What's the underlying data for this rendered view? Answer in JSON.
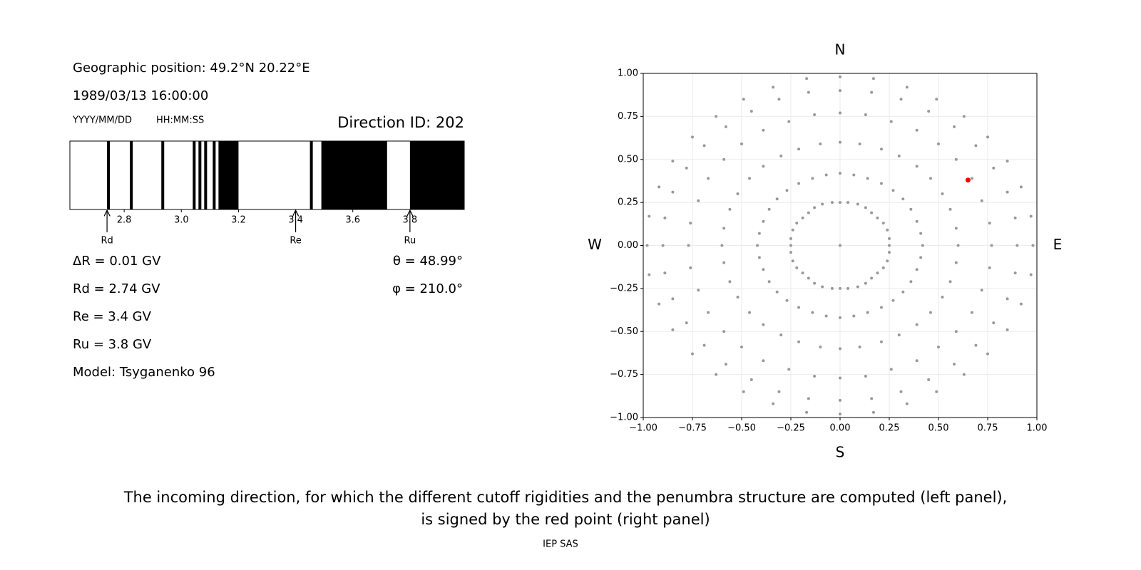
{
  "info": {
    "position": "Geographic position: 49.2°N 20.22°E",
    "datetime": "1989/03/13 16:00:00",
    "date_format": "YYYY/MM/DD",
    "time_format": "HH:MM:SS",
    "direction_id": "Direction ID: 202",
    "delta_r": "ΔR = 0.01 GV",
    "rd": "Rd = 2.74 GV",
    "re": "Re = 3.4 GV",
    "ru": "Ru = 3.8 GV",
    "model": "Model: Tsyganenko 96",
    "theta": "θ = 48.99°",
    "phi": "φ = 210.0°"
  },
  "caption": [
    "The incoming direction, for which the different cutoff rigidities and the penumbra structure are computed (left panel),",
    "is signed by the red point (right panel)"
  ],
  "footer": "IEP SAS",
  "chart_data": [
    {
      "type": "penumbra",
      "color": "#000000",
      "xlim": [
        2.61,
        3.99
      ],
      "xticks": [
        2.8,
        {
          "value": 3,
          "label": "3.0"
        },
        3.2,
        3.4,
        3.6,
        3.8
      ],
      "bands": [
        [
          2.74,
          2.75
        ],
        [
          2.82,
          2.83
        ],
        [
          2.93,
          2.94
        ],
        [
          3.04,
          3.05
        ],
        [
          3.06,
          3.07
        ],
        [
          3.08,
          3.09
        ],
        [
          3.11,
          3.12
        ],
        [
          3.13,
          3.2
        ],
        [
          3.45,
          3.46
        ],
        [
          3.49,
          3.72
        ],
        [
          3.8,
          3.99
        ]
      ],
      "annotations": [
        {
          "label": "Rd",
          "value": 2.74
        },
        {
          "label": "Re",
          "value": 3.4
        },
        {
          "label": "Ru",
          "value": 3.8
        }
      ]
    },
    {
      "type": "scatter",
      "color": "#999999",
      "grid": true,
      "xlim": [
        -1,
        1
      ],
      "ylim": [
        -1,
        1
      ],
      "xticks": [
        {
          "value": -1,
          "label": "−1.00"
        },
        {
          "value": -0.75,
          "label": "−0.75"
        },
        {
          "value": -0.5,
          "label": "−0.50"
        },
        {
          "value": -0.25,
          "label": "−0.25"
        },
        {
          "value": 0,
          "label": "0.00"
        },
        {
          "value": 0.25,
          "label": "0.25"
        },
        {
          "value": 0.5,
          "label": "0.50"
        },
        {
          "value": 0.75,
          "label": "0.75"
        },
        {
          "value": 1,
          "label": "1.00"
        }
      ],
      "yticks": [
        {
          "value": -1,
          "label": "−1.00"
        },
        {
          "value": -0.75,
          "label": "−0.75"
        },
        {
          "value": -0.5,
          "label": "−0.50"
        },
        {
          "value": -0.25,
          "label": "−0.25"
        },
        {
          "value": 0,
          "label": "0.00"
        },
        {
          "value": 0.25,
          "label": "0.25"
        },
        {
          "value": 0.5,
          "label": "0.50"
        },
        {
          "value": 0.75,
          "label": "0.75"
        },
        {
          "value": 1,
          "label": "1.00"
        }
      ],
      "directions": {
        "top": "N",
        "bottom": "S",
        "left": "W",
        "right": "E"
      },
      "x": [
        0,
        0,
        0.04,
        0.09,
        0.13,
        0.16,
        0.19,
        0.22,
        0.24,
        0.25,
        0.25,
        0.25,
        0.24,
        0.22,
        0.19,
        0.16,
        0.13,
        0.09,
        0.04,
        0,
        -0.04,
        -0.09,
        -0.13,
        -0.16,
        -0.19,
        -0.22,
        -0.24,
        -0.25,
        -0.25,
        -0.25,
        -0.24,
        -0.22,
        -0.19,
        -0.16,
        -0.13,
        -0.09,
        -0.04,
        0,
        0.07,
        0.14,
        0.21,
        0.27,
        0.32,
        0.36,
        0.39,
        0.41,
        0.42,
        0.41,
        0.39,
        0.36,
        0.32,
        0.27,
        0.21,
        0.14,
        0.07,
        0,
        -0.07,
        -0.14,
        -0.21,
        -0.27,
        -0.32,
        -0.36,
        -0.39,
        -0.41,
        -0.42,
        -0.41,
        -0.39,
        -0.36,
        -0.32,
        -0.27,
        -0.21,
        -0.14,
        -0.07,
        0,
        0.1,
        0.21,
        0.3,
        0.39,
        0.46,
        0.52,
        0.56,
        0.59,
        0.6,
        0.59,
        0.56,
        0.52,
        0.46,
        0.39,
        0.3,
        0.21,
        0.1,
        0,
        -0.1,
        -0.21,
        -0.3,
        -0.39,
        -0.46,
        -0.52,
        -0.56,
        -0.59,
        -0.6,
        -0.59,
        -0.56,
        -0.52,
        -0.46,
        -0.39,
        -0.3,
        -0.21,
        -0.1,
        0,
        0.13,
        0.26,
        0.39,
        0.5,
        0.59,
        0.67,
        0.72,
        0.76,
        0.77,
        0.76,
        0.72,
        0.67,
        0.59,
        0.5,
        0.39,
        0.26,
        0.13,
        0,
        -0.13,
        -0.26,
        -0.39,
        -0.5,
        -0.59,
        -0.67,
        -0.72,
        -0.76,
        -0.77,
        -0.76,
        -0.72,
        -0.67,
        -0.59,
        -0.5,
        -0.39,
        -0.26,
        -0.13,
        0,
        0.16,
        0.31,
        0.45,
        0.58,
        0.69,
        0.78,
        0.85,
        0.89,
        0.9,
        0.89,
        0.85,
        0.78,
        0.69,
        0.58,
        0.45,
        0.31,
        0.16,
        0,
        -0.16,
        -0.31,
        -0.45,
        -0.58,
        -0.69,
        -0.78,
        -0.85,
        -0.89,
        -0.9,
        -0.89,
        -0.85,
        -0.78,
        -0.69,
        -0.58,
        -0.45,
        -0.31,
        -0.16,
        0,
        0.17,
        0.34,
        0.49,
        0.63,
        0.75,
        0.85,
        0.92,
        0.97,
        0.98,
        0.97,
        0.92,
        0.85,
        0.75,
        0.63,
        0.49,
        0.34,
        0.17,
        0,
        -0.17,
        -0.34,
        -0.49,
        -0.63,
        -0.75,
        -0.85,
        -0.92,
        -0.97,
        -0.98,
        -0.97,
        -0.92,
        -0.85,
        -0.75,
        -0.63,
        -0.49,
        -0.34,
        -0.17
      ],
      "y": [
        0,
        0.25,
        0.25,
        0.24,
        0.22,
        0.19,
        0.16,
        0.13,
        0.09,
        0.04,
        0,
        -0.04,
        -0.09,
        -0.13,
        -0.16,
        -0.19,
        -0.22,
        -0.24,
        -0.25,
        -0.25,
        -0.25,
        -0.24,
        -0.22,
        -0.19,
        -0.16,
        -0.13,
        -0.09,
        -0.04,
        0,
        0.04,
        0.09,
        0.13,
        0.16,
        0.19,
        0.22,
        0.24,
        0.25,
        0.42,
        0.41,
        0.39,
        0.36,
        0.32,
        0.27,
        0.21,
        0.14,
        0.07,
        0,
        -0.07,
        -0.14,
        -0.21,
        -0.27,
        -0.32,
        -0.36,
        -0.39,
        -0.41,
        -0.42,
        -0.41,
        -0.39,
        -0.36,
        -0.32,
        -0.27,
        -0.21,
        -0.14,
        -0.07,
        0,
        0.07,
        0.14,
        0.21,
        0.27,
        0.32,
        0.36,
        0.39,
        0.41,
        0.6,
        0.59,
        0.56,
        0.52,
        0.46,
        0.39,
        0.3,
        0.21,
        0.1,
        0,
        -0.1,
        -0.21,
        -0.3,
        -0.39,
        -0.46,
        -0.52,
        -0.56,
        -0.59,
        -0.6,
        -0.59,
        -0.56,
        -0.52,
        -0.46,
        -0.39,
        -0.3,
        -0.21,
        -0.1,
        0,
        0.1,
        0.21,
        0.3,
        0.39,
        0.46,
        0.52,
        0.56,
        0.59,
        0.77,
        0.76,
        0.72,
        0.67,
        0.59,
        0.5,
        0.39,
        0.26,
        0.13,
        0,
        -0.13,
        -0.26,
        -0.39,
        -0.5,
        -0.59,
        -0.67,
        -0.72,
        -0.76,
        -0.77,
        -0.76,
        -0.72,
        -0.67,
        -0.59,
        -0.5,
        -0.39,
        -0.26,
        -0.13,
        0,
        0.13,
        0.26,
        0.39,
        0.5,
        0.59,
        0.67,
        0.72,
        0.76,
        0.9,
        0.89,
        0.85,
        0.78,
        0.69,
        0.58,
        0.45,
        0.31,
        0.16,
        0,
        -0.16,
        -0.31,
        -0.45,
        -0.58,
        -0.69,
        -0.78,
        -0.85,
        -0.89,
        -0.9,
        -0.89,
        -0.85,
        -0.78,
        -0.69,
        -0.58,
        -0.45,
        -0.31,
        -0.16,
        0,
        0.16,
        0.31,
        0.45,
        0.58,
        0.69,
        0.78,
        0.85,
        0.89,
        0.98,
        0.97,
        0.92,
        0.85,
        0.75,
        0.63,
        0.49,
        0.34,
        0.17,
        0,
        -0.17,
        -0.34,
        -0.49,
        -0.63,
        -0.75,
        -0.85,
        -0.92,
        -0.97,
        -0.98,
        -0.97,
        -0.92,
        -0.85,
        -0.75,
        -0.63,
        -0.49,
        -0.34,
        -0.17,
        0,
        0.17,
        0.34,
        0.49,
        0.63,
        0.75,
        0.85,
        0.92,
        0.97
      ],
      "highlight": {
        "x": [
          0.65
        ],
        "y": [
          0.38
        ],
        "color": "#ff0000"
      }
    }
  ]
}
